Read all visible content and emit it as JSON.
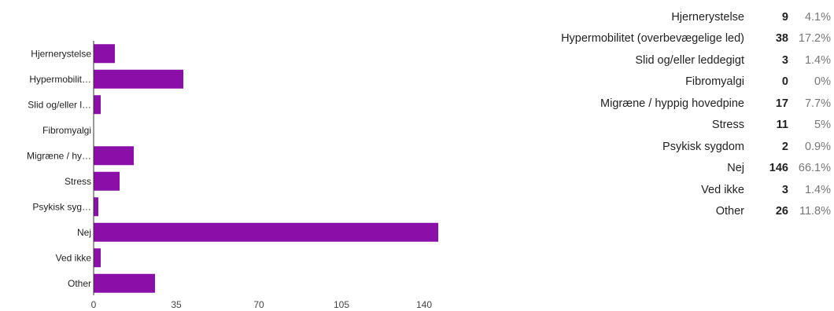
{
  "chart_data": {
    "type": "bar",
    "orientation": "horizontal",
    "categories": [
      "Hjernerystelse",
      "Hypermobilit…",
      "Slid og/eller l…",
      "Fibromyalgi",
      "Migræne / hy…",
      "Stress",
      "Psykisk syg…",
      "Nej",
      "Ved ikke",
      "Other"
    ],
    "values": [
      9,
      38,
      3,
      0,
      17,
      11,
      2,
      146,
      3,
      26
    ],
    "xlim": [
      0,
      150
    ],
    "x_ticks": [
      "0",
      "35",
      "70",
      "105",
      "140"
    ],
    "bar_color": "#8a0fa8",
    "grid": false
  },
  "summary": {
    "rows": [
      {
        "label": "Hjernerystelse",
        "count": "9",
        "percent": "4.1%"
      },
      {
        "label": "Hypermobilitet (overbevægelige led)",
        "count": "38",
        "percent": "17.2%"
      },
      {
        "label": "Slid og/eller leddegigt",
        "count": "3",
        "percent": "1.4%"
      },
      {
        "label": "Fibromyalgi",
        "count": "0",
        "percent": "0%"
      },
      {
        "label": "Migræne / hyppig hovedpine",
        "count": "17",
        "percent": "7.7%"
      },
      {
        "label": "Stress",
        "count": "11",
        "percent": "5%"
      },
      {
        "label": "Psykisk sygdom",
        "count": "2",
        "percent": "0.9%"
      },
      {
        "label": "Nej",
        "count": "146",
        "percent": "66.1%"
      },
      {
        "label": "Ved ikke",
        "count": "3",
        "percent": "1.4%"
      },
      {
        "label": "Other",
        "count": "26",
        "percent": "11.8%"
      }
    ]
  }
}
